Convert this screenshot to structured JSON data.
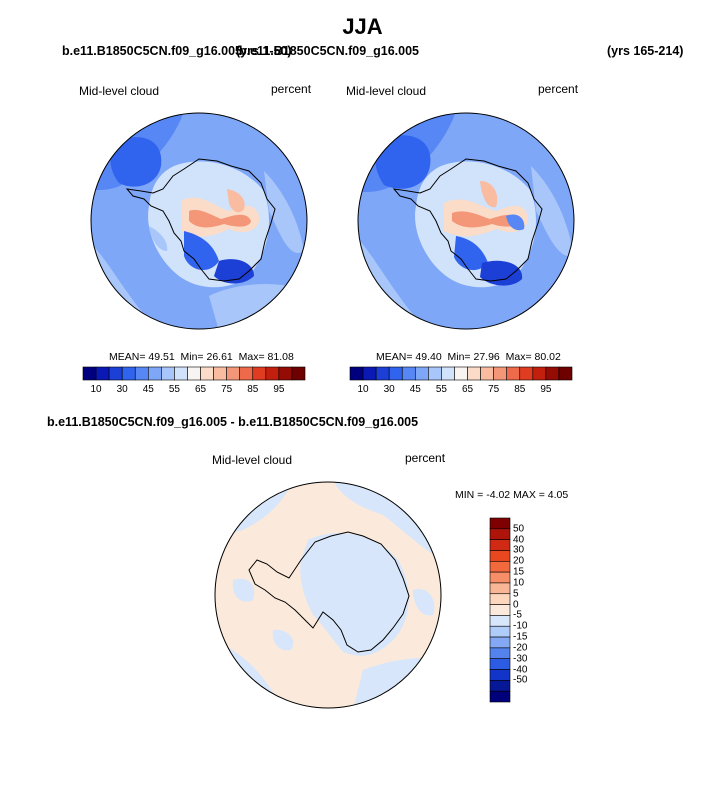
{
  "title": "JJA",
  "panel_left": {
    "case_title": "b.e11.B1850C5CN.f09_g16.005",
    "years": "(yrs 1-50)",
    "field": "Mid-level cloud",
    "units": "percent",
    "mean_label": "MEAN=",
    "mean": "49.51",
    "min_label": "Min=",
    "min": "26.61",
    "max_label": "Max=",
    "max": "81.08"
  },
  "panel_right": {
    "case_title": "b.e11.B1850C5CN.f09_g16.005",
    "years": "(yrs 165-214)",
    "field": "Mid-level cloud",
    "units": "percent",
    "mean_label": "MEAN=",
    "mean": "49.40",
    "min_label": "Min=",
    "min": "27.96",
    "max_label": "Max=",
    "max": "80.02"
  },
  "panel_diff": {
    "title": "b.e11.B1850C5CN.f09_g16.005 - b.e11.B1850C5CN.f09_g16.005",
    "field": "Mid-level cloud",
    "units": "percent",
    "minmax_text": "MIN =  -4.02 MAX =  4.05"
  },
  "colorbar_main": {
    "labels": [
      "10",
      "30",
      "45",
      "55",
      "65",
      "75",
      "85",
      "95"
    ],
    "colors": [
      "#00007f",
      "#0a18b4",
      "#1c3fd6",
      "#3164ee",
      "#5787f5",
      "#7fa7f7",
      "#a8c6fa",
      "#d1e2fb",
      "#f8f4f1",
      "#fbdcc9",
      "#f9bca0",
      "#f49778",
      "#ee6a4a",
      "#e03c22",
      "#c21f0e",
      "#950c05",
      "#6f0000"
    ]
  },
  "colorbar_diff": {
    "labels": [
      "50",
      "40",
      "30",
      "20",
      "15",
      "10",
      "5",
      "0",
      "-5",
      "-10",
      "-15",
      "-20",
      "-30",
      "-40",
      "-50"
    ],
    "colors": [
      "#7f0000",
      "#ae1409",
      "#d02a14",
      "#e8471f",
      "#f2693e",
      "#f68f67",
      "#f9b696",
      "#fcd7bd",
      "#fbeadb",
      "#d7e6fa",
      "#b0ccf8",
      "#84a8f4",
      "#5483ee",
      "#2c5ce4",
      "#1234c8",
      "#071896",
      "#00007a"
    ]
  }
}
